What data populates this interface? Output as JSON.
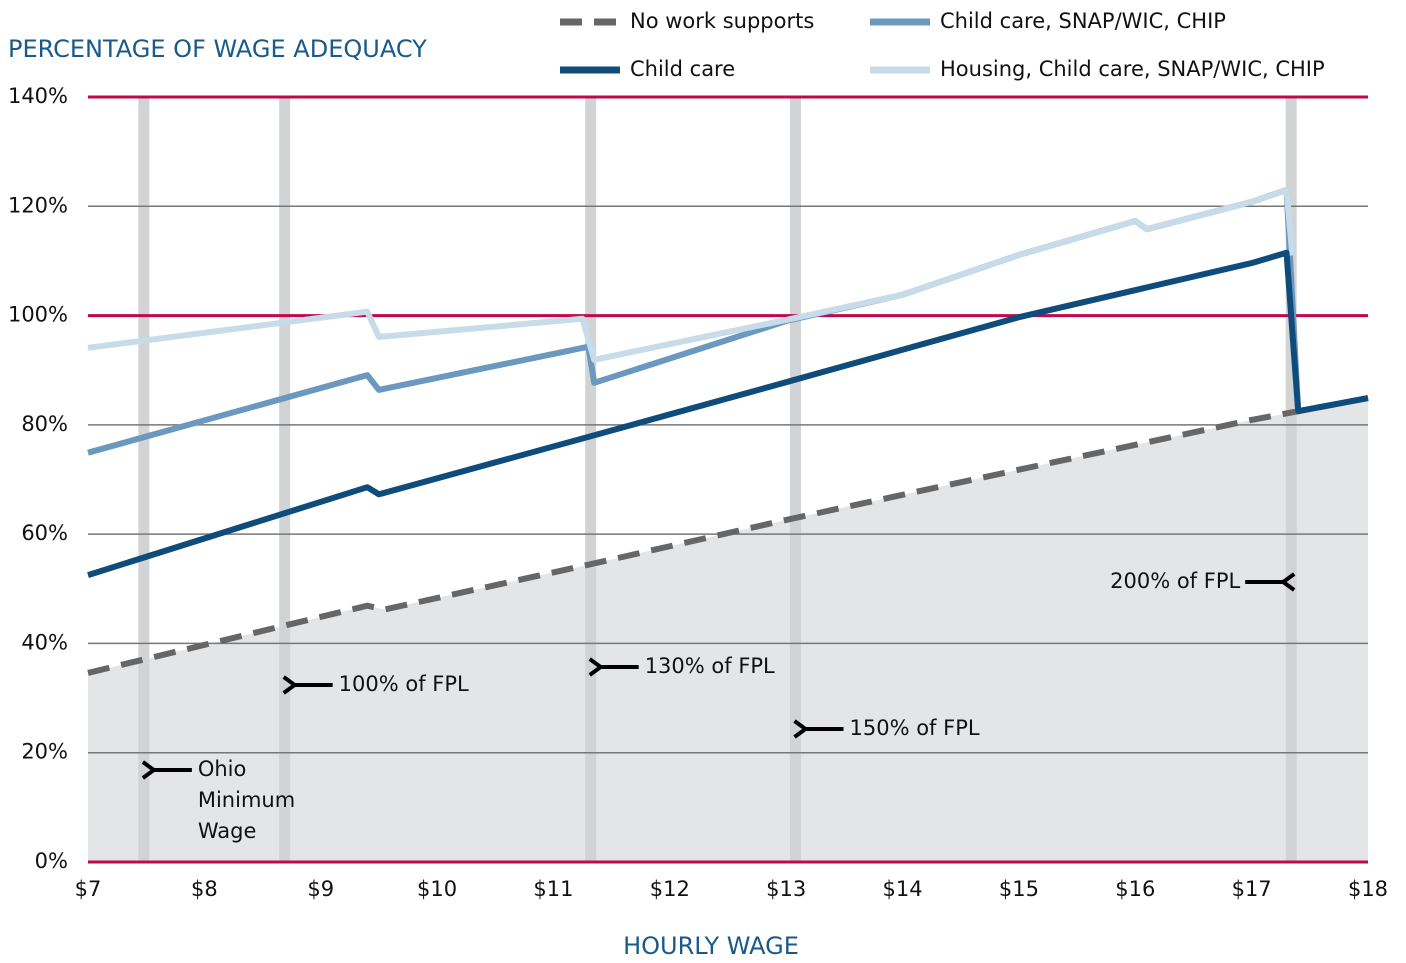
{
  "chart_data": {
    "type": "line",
    "title": "PERCENTAGE OF WAGE ADEQUACY",
    "x_label": "HOURLY WAGE",
    "xlim": [
      7,
      18
    ],
    "xticks": [
      {
        "value": 7,
        "label": "$7"
      },
      {
        "value": 8,
        "label": "$8"
      },
      {
        "value": 9,
        "label": "$9"
      },
      {
        "value": 10,
        "label": "$10"
      },
      {
        "value": 11,
        "label": "$11"
      },
      {
        "value": 12,
        "label": "$12"
      },
      {
        "value": 13,
        "label": "$13"
      },
      {
        "value": 14,
        "label": "$14"
      },
      {
        "value": 15,
        "label": "$15"
      },
      {
        "value": 16,
        "label": "$16"
      },
      {
        "value": 17,
        "label": "$17"
      },
      {
        "value": 18,
        "label": "$18"
      }
    ],
    "ylim": [
      0,
      140
    ],
    "yticks": [
      {
        "value": 0,
        "label": "0%"
      },
      {
        "value": 20,
        "label": "20%"
      },
      {
        "value": 40,
        "label": "40%"
      },
      {
        "value": 60,
        "label": "60%"
      },
      {
        "value": 80,
        "label": "80%"
      },
      {
        "value": 100,
        "label": "100%"
      },
      {
        "value": 120,
        "label": "120%"
      },
      {
        "value": 140,
        "label": "140%"
      }
    ],
    "grid": true,
    "highlight_lines": {
      "values": [
        0,
        100,
        140
      ],
      "color": "#c0084a"
    },
    "area_under": {
      "series": 0,
      "color": "#e4e5e7"
    },
    "series": [
      {
        "name": "No work supports",
        "color": "#666666",
        "dashed": true,
        "x": [
          7,
          9.4,
          9.55,
          11.3,
          13,
          15,
          17,
          17.4,
          18
        ],
        "values": [
          34.6,
          46.9,
          46.2,
          54.4,
          62.6,
          71.8,
          80.9,
          82.5,
          84.9
        ]
      },
      {
        "name": "Child care",
        "color": "#0f4c7c",
        "x": [
          7,
          9.4,
          9.5,
          11.3,
          13,
          15,
          17,
          17.3,
          17.4,
          18
        ],
        "values": [
          52.5,
          68.6,
          67.3,
          77.8,
          87.8,
          99.7,
          109.6,
          111.5,
          82.5,
          84.9
        ]
      },
      {
        "name": "Child care, SNAP/WIC, CHIP",
        "color": "#6a98bf",
        "x": [
          7,
          9.4,
          9.5,
          11.3,
          11.35,
          13,
          14,
          15,
          16,
          16.1,
          17,
          17.3,
          17.4,
          18
        ],
        "values": [
          74.9,
          89.1,
          86.4,
          94.3,
          87.7,
          99.0,
          103.8,
          111.1,
          117.3,
          115.8,
          120.8,
          123,
          82.5,
          84.9
        ]
      },
      {
        "name": "Housing, Child care, SNAP/WIC, CHIP",
        "color": "#c8dbe8",
        "x": [
          7,
          9.4,
          9.5,
          11.25,
          11.35,
          13,
          14,
          15,
          16,
          16.1,
          17,
          17.3,
          17.35
        ],
        "values": [
          94.1,
          100.7,
          96.1,
          99.4,
          91.9,
          99.2,
          103.8,
          111.1,
          117.3,
          115.8,
          120.8,
          123,
          111
        ]
      }
    ],
    "markers": {
      "color": "#d2d3d5",
      "items": [
        {
          "x": 7.48,
          "label": [
            "Ohio",
            "Minimum",
            "Wage"
          ]
        },
        {
          "x": 8.69,
          "label": [
            "100% of FPL"
          ]
        },
        {
          "x": 11.32,
          "label": [
            "130% of FPL"
          ]
        },
        {
          "x": 13.08,
          "label": [
            "150% of FPL"
          ]
        },
        {
          "x": 17.34,
          "label": [
            "200% of FPL"
          ]
        }
      ]
    }
  }
}
